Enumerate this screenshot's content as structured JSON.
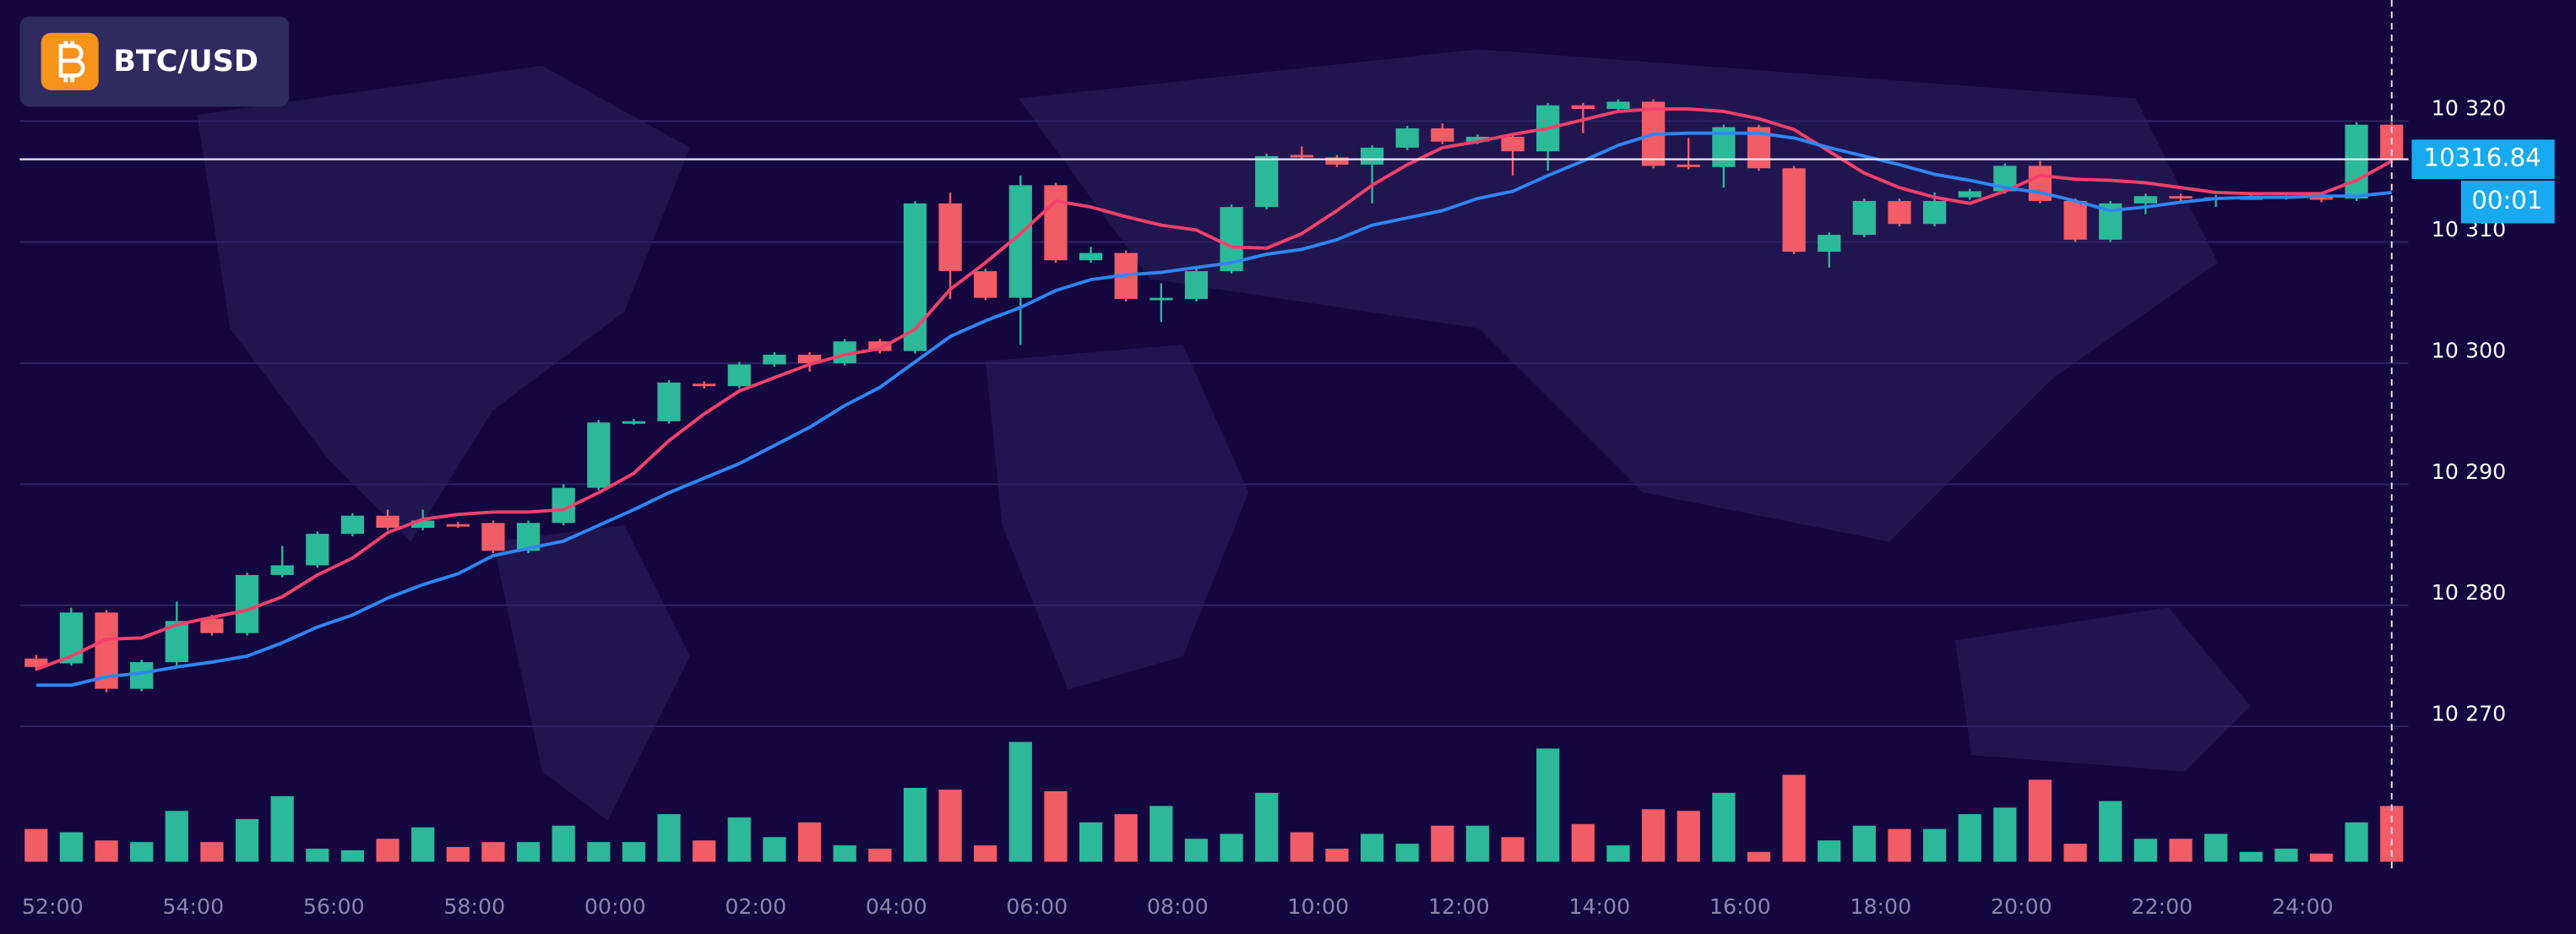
{
  "chart_data": {
    "type": "candlestick",
    "title": "BTC/USD",
    "categories": [
      "52:00",
      null,
      null,
      null,
      "54:00",
      null,
      null,
      null,
      "56:00",
      null,
      null,
      null,
      "58:00",
      null,
      null,
      null,
      "00:00",
      null,
      null,
      null,
      "02:00",
      null,
      null,
      null,
      "04:00",
      null,
      null,
      null,
      "06:00",
      null,
      null,
      null,
      "08:00",
      null,
      null,
      null,
      "10:00",
      null,
      null,
      null,
      "12:00",
      null,
      null,
      null,
      "14:00",
      null,
      null,
      null,
      "16:00",
      null,
      null,
      null,
      "18:00",
      null,
      null,
      null,
      "20:00",
      null,
      null,
      null,
      "22:00",
      null,
      null,
      null,
      "24:00",
      null,
      null,
      null
    ],
    "open": [
      10275.6,
      10275.2,
      10279.4,
      10273.1,
      10275.3,
      10278.9,
      10277.7,
      10282.5,
      10283.3,
      10285.9,
      10287.4,
      10286.4,
      10286.7,
      10286.8,
      10284.5,
      10286.8,
      10289.7,
      10295.1,
      10295.2,
      10298.3,
      10298.1,
      10299.9,
      10300.7,
      10300.0,
      10301.8,
      10301.0,
      10313.2,
      10307.6,
      10305.4,
      10314.7,
      10308.5,
      10309.1,
      10305.4,
      10305.3,
      10307.6,
      10312.9,
      10317.2,
      10317.0,
      10316.4,
      10317.8,
      10319.4,
      10318.3,
      10318.7,
      10317.5,
      10321.3,
      10321.0,
      10321.6,
      10316.4,
      10316.2,
      10319.5,
      10316.1,
      10309.2,
      10310.6,
      10313.4,
      10311.5,
      10313.7,
      10314.2,
      10316.3,
      10313.4,
      10310.2,
      10313.2,
      10313.8,
      10313.6,
      10313.7,
      10313.7,
      10313.8,
      10313.6,
      10319.7
    ],
    "high": [
      10275.9,
      10279.8,
      10279.6,
      10275.5,
      10280.3,
      10279.2,
      10282.7,
      10284.9,
      10286.1,
      10287.6,
      10287.9,
      10287.9,
      10286.9,
      10287.0,
      10287.0,
      10290.0,
      10295.3,
      10295.4,
      10298.6,
      10298.5,
      10300.1,
      10300.9,
      10300.9,
      10302.0,
      10302.0,
      10313.4,
      10314.1,
      10307.8,
      10315.5,
      10314.9,
      10309.6,
      10309.3,
      10306.6,
      10307.8,
      10313.1,
      10317.3,
      10317.9,
      10317.2,
      10318.0,
      10319.6,
      10319.8,
      10318.9,
      10318.9,
      10321.5,
      10321.5,
      10321.8,
      10321.8,
      10318.6,
      10319.7,
      10319.7,
      10316.3,
      10310.8,
      10313.6,
      10313.6,
      10314.1,
      10314.4,
      10316.5,
      10316.7,
      10313.6,
      10313.4,
      10314.0,
      10314.0,
      10313.9,
      10313.9,
      10313.9,
      10314.0,
      10319.9,
      10319.9
    ],
    "low": [
      10274.6,
      10275.0,
      10272.8,
      10272.9,
      10275.0,
      10277.5,
      10277.5,
      10282.3,
      10283.1,
      10285.7,
      10286.2,
      10286.2,
      10286.4,
      10284.3,
      10284.3,
      10286.6,
      10289.5,
      10294.9,
      10295.0,
      10297.9,
      10297.9,
      10299.7,
      10299.3,
      10299.8,
      10300.8,
      10300.8,
      10305.3,
      10305.2,
      10301.5,
      10308.3,
      10308.3,
      10305.1,
      10303.4,
      10305.1,
      10307.4,
      10312.7,
      10316.8,
      10316.2,
      10313.2,
      10317.6,
      10318.1,
      10318.1,
      10315.5,
      10315.9,
      10319.0,
      10320.8,
      10316.1,
      10316.0,
      10314.5,
      10315.9,
      10309.0,
      10307.9,
      10310.4,
      10311.3,
      10311.3,
      10313.5,
      10314.0,
      10313.2,
      10310.0,
      10310.0,
      10312.3,
      10313.4,
      10312.9,
      10313.5,
      10313.5,
      10313.3,
      10313.4,
      10316.6
    ],
    "close": [
      10274.9,
      10279.4,
      10273.1,
      10275.3,
      10278.7,
      10277.7,
      10282.5,
      10283.3,
      10285.9,
      10287.4,
      10286.4,
      10287.0,
      10286.6,
      10284.5,
      10286.8,
      10289.7,
      10295.1,
      10295.2,
      10298.4,
      10298.1,
      10299.9,
      10300.7,
      10300.0,
      10301.8,
      10301.0,
      10313.2,
      10307.6,
      10305.4,
      10314.7,
      10308.5,
      10309.1,
      10305.3,
      10305.4,
      10307.6,
      10312.9,
      10317.1,
      10317.0,
      10316.4,
      10317.8,
      10319.4,
      10318.3,
      10318.7,
      10317.5,
      10321.3,
      10321.0,
      10321.6,
      10316.3,
      10316.2,
      10319.5,
      10316.1,
      10309.2,
      10310.6,
      10313.4,
      10311.5,
      10313.4,
      10314.2,
      10316.3,
      10313.4,
      10310.2,
      10313.2,
      10313.8,
      10313.6,
      10313.7,
      10313.7,
      10313.8,
      10313.5,
      10319.7,
      10316.84
    ],
    "volume": {
      "values": [
        20,
        18,
        13,
        12,
        31,
        12,
        26,
        40,
        8,
        7,
        14,
        21,
        9,
        12,
        12,
        22,
        12,
        12,
        29,
        13,
        27,
        15,
        24,
        10,
        8,
        45,
        44,
        10,
        73,
        43,
        24,
        29,
        34,
        14,
        17,
        42,
        18,
        8,
        17,
        11,
        22,
        22,
        15,
        69,
        23,
        10,
        32,
        31,
        42,
        6,
        53,
        13,
        22,
        20,
        20,
        29,
        33,
        50,
        11,
        37,
        14,
        14,
        17,
        6,
        8,
        5,
        24,
        34
      ],
      "ylim": [
        0,
        80
      ]
    },
    "moving_averages": [
      {
        "color": "#f2416b",
        "values": [
          10274.7,
          10275.8,
          10277.2,
          10277.3,
          10278.4,
          10279.0,
          10279.6,
          10280.7,
          10282.5,
          10283.9,
          10286.0,
          10287.1,
          10287.5,
          10287.7,
          10287.7,
          10287.9,
          10289.3,
          10290.9,
          10293.6,
          10295.8,
          10297.7,
          10298.8,
          10299.9,
          10300.7,
          10301.2,
          10302.8,
          10306.1,
          10308.3,
          10310.7,
          10313.4,
          10312.9,
          10312.1,
          10311.4,
          10311.0,
          10309.6,
          10309.5,
          10310.7,
          10312.6,
          10314.7,
          10316.4,
          10317.8,
          10318.3,
          10318.9,
          10319.4,
          10320.1,
          10320.8,
          10321.0,
          10321.0,
          10320.8,
          10320.2,
          10319.3,
          10317.5,
          10315.7,
          10314.5,
          10313.7,
          10313.2,
          10314.2,
          10315.5,
          10315.2,
          10315.1,
          10314.9,
          10314.5,
          10314.1,
          10314.0,
          10314.0,
          10314.0,
          10315.1,
          10316.7
        ]
      },
      {
        "color": "#2f86f6",
        "values": [
          10273.4,
          10273.4,
          10274.1,
          10274.4,
          10274.9,
          10275.3,
          10275.8,
          10276.9,
          10278.2,
          10279.2,
          10280.6,
          10281.7,
          10282.6,
          10284.1,
          10284.7,
          10285.3,
          10286.6,
          10287.9,
          10289.3,
          10290.5,
          10291.7,
          10293.2,
          10294.7,
          10296.5,
          10298.0,
          10300.1,
          10302.2,
          10303.5,
          10304.6,
          10306.0,
          10306.9,
          10307.3,
          10307.5,
          10307.9,
          10308.3,
          10309.0,
          10309.4,
          10310.2,
          10311.4,
          10312.0,
          10312.6,
          10313.6,
          10314.2,
          10315.5,
          10316.7,
          10318.0,
          10318.9,
          10319.0,
          10319.0,
          10319.0,
          10318.6,
          10317.8,
          10317.1,
          10316.4,
          10315.6,
          10315.1,
          10314.5,
          10314.1,
          10313.4,
          10312.6,
          10312.9,
          10313.3,
          10313.6,
          10313.7,
          10313.7,
          10313.8,
          10313.8,
          10314.1
        ]
      }
    ],
    "up_color": "#2bb99a",
    "down_color": "#f25c67",
    "ylim": [
      10262.2,
      10330
    ],
    "yticks": [
      {
        "value": 10270,
        "label": "10 270"
      },
      {
        "value": 10280,
        "label": "10 280"
      },
      {
        "value": 10290,
        "label": "10 290"
      },
      {
        "value": 10300,
        "label": "10 300"
      },
      {
        "value": 10310,
        "label": "10 310"
      },
      {
        "value": 10320,
        "label": "10 320"
      }
    ],
    "grid": true,
    "last_price": 10316.84,
    "timer": "00:01"
  }
}
